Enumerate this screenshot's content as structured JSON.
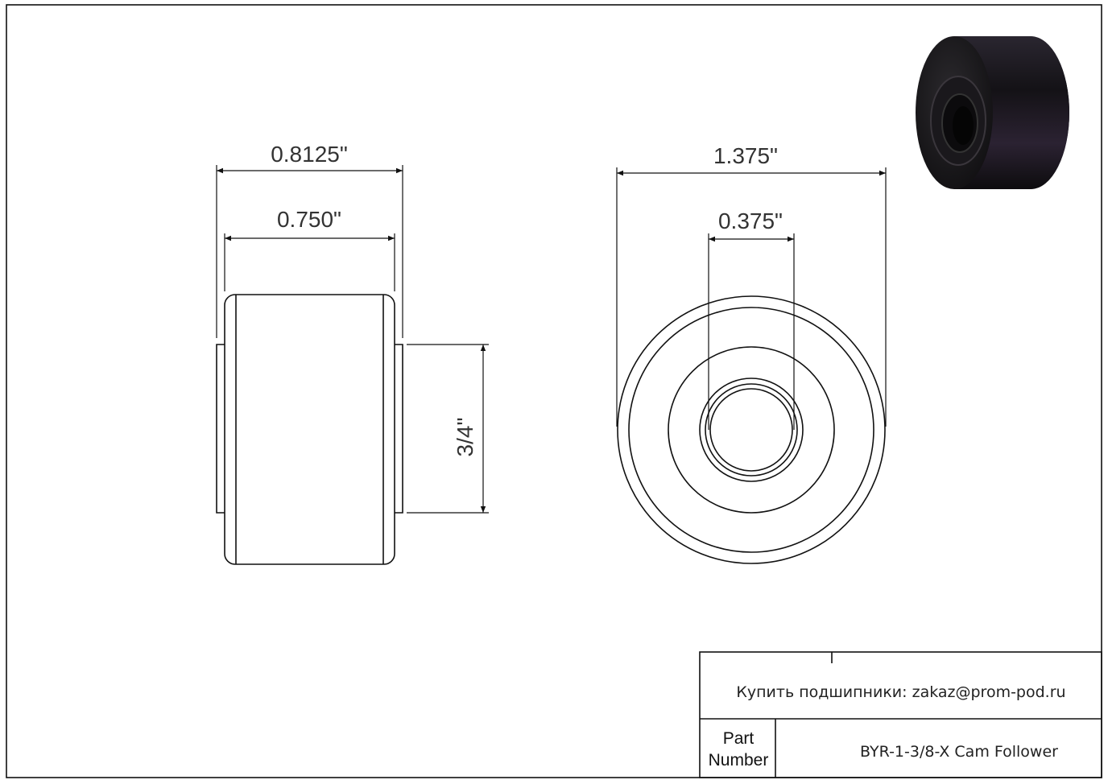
{
  "drawing": {
    "side_view": {
      "overall_width": "0.8125\"",
      "roller_width": "0.750\"",
      "stud_diameter": "3/4\""
    },
    "front_view": {
      "outer_diameter": "1.375\"",
      "bore_diameter": "0.375\""
    },
    "render_3d": {
      "color": "#1e1a20"
    }
  },
  "title_block": {
    "contact": "Купить подшипники: zakaz@prom-pod.ru",
    "part_number_label_line1": "Part",
    "part_number_label_line2": "Number",
    "part_number": "BYR-1-3/8-X Cam Follower"
  }
}
